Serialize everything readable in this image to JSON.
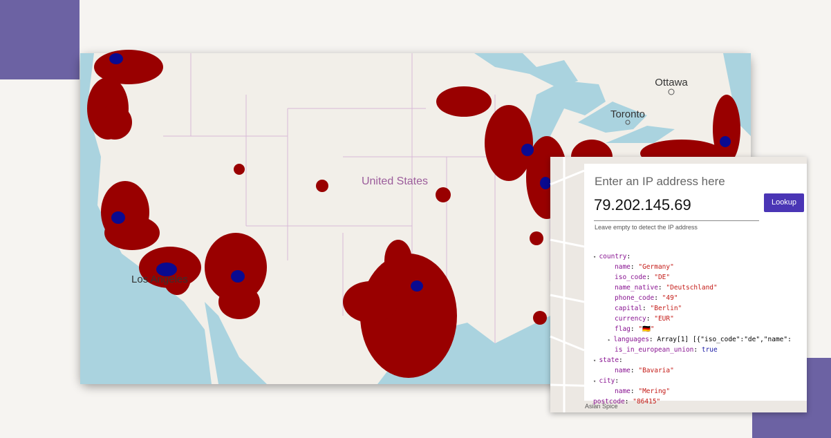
{
  "map": {
    "labels": [
      "Ottawa",
      "Toronto",
      "United States",
      "Los Angeles"
    ]
  },
  "lookup": {
    "placeholder": "Enter an IP address here",
    "ip": "79.202.145.69",
    "button": "Lookup",
    "hint": "Leave empty to detect the IP address"
  },
  "result": {
    "rows": [
      {
        "key": "country"
      },
      {
        "key": "name",
        "value": "\"Germany\""
      },
      {
        "key": "iso_code",
        "value": "\"DE\""
      },
      {
        "key": "name_native",
        "value": "\"Deutschland\""
      },
      {
        "key": "phone_code",
        "value": "\"49\""
      },
      {
        "key": "capital",
        "value": "\"Berlin\""
      },
      {
        "key": "currency",
        "value": "\"EUR\""
      },
      {
        "key": "flag",
        "value": "\"🇩🇪\""
      },
      {
        "key": "languages",
        "value": "Array[1] [{\"iso_code\":\"de\",\"name\":"
      },
      {
        "key": "is_in_european_union",
        "value": "true"
      },
      {
        "key": "state"
      },
      {
        "key": "name",
        "value": "\"Bavaria\""
      },
      {
        "key": "city"
      },
      {
        "key": "name",
        "value": "\"Mering\""
      },
      {
        "key": "postcode",
        "value": "\"86415\""
      }
    ]
  },
  "inset_map": {
    "labels": [
      "Asian Spice"
    ]
  }
}
